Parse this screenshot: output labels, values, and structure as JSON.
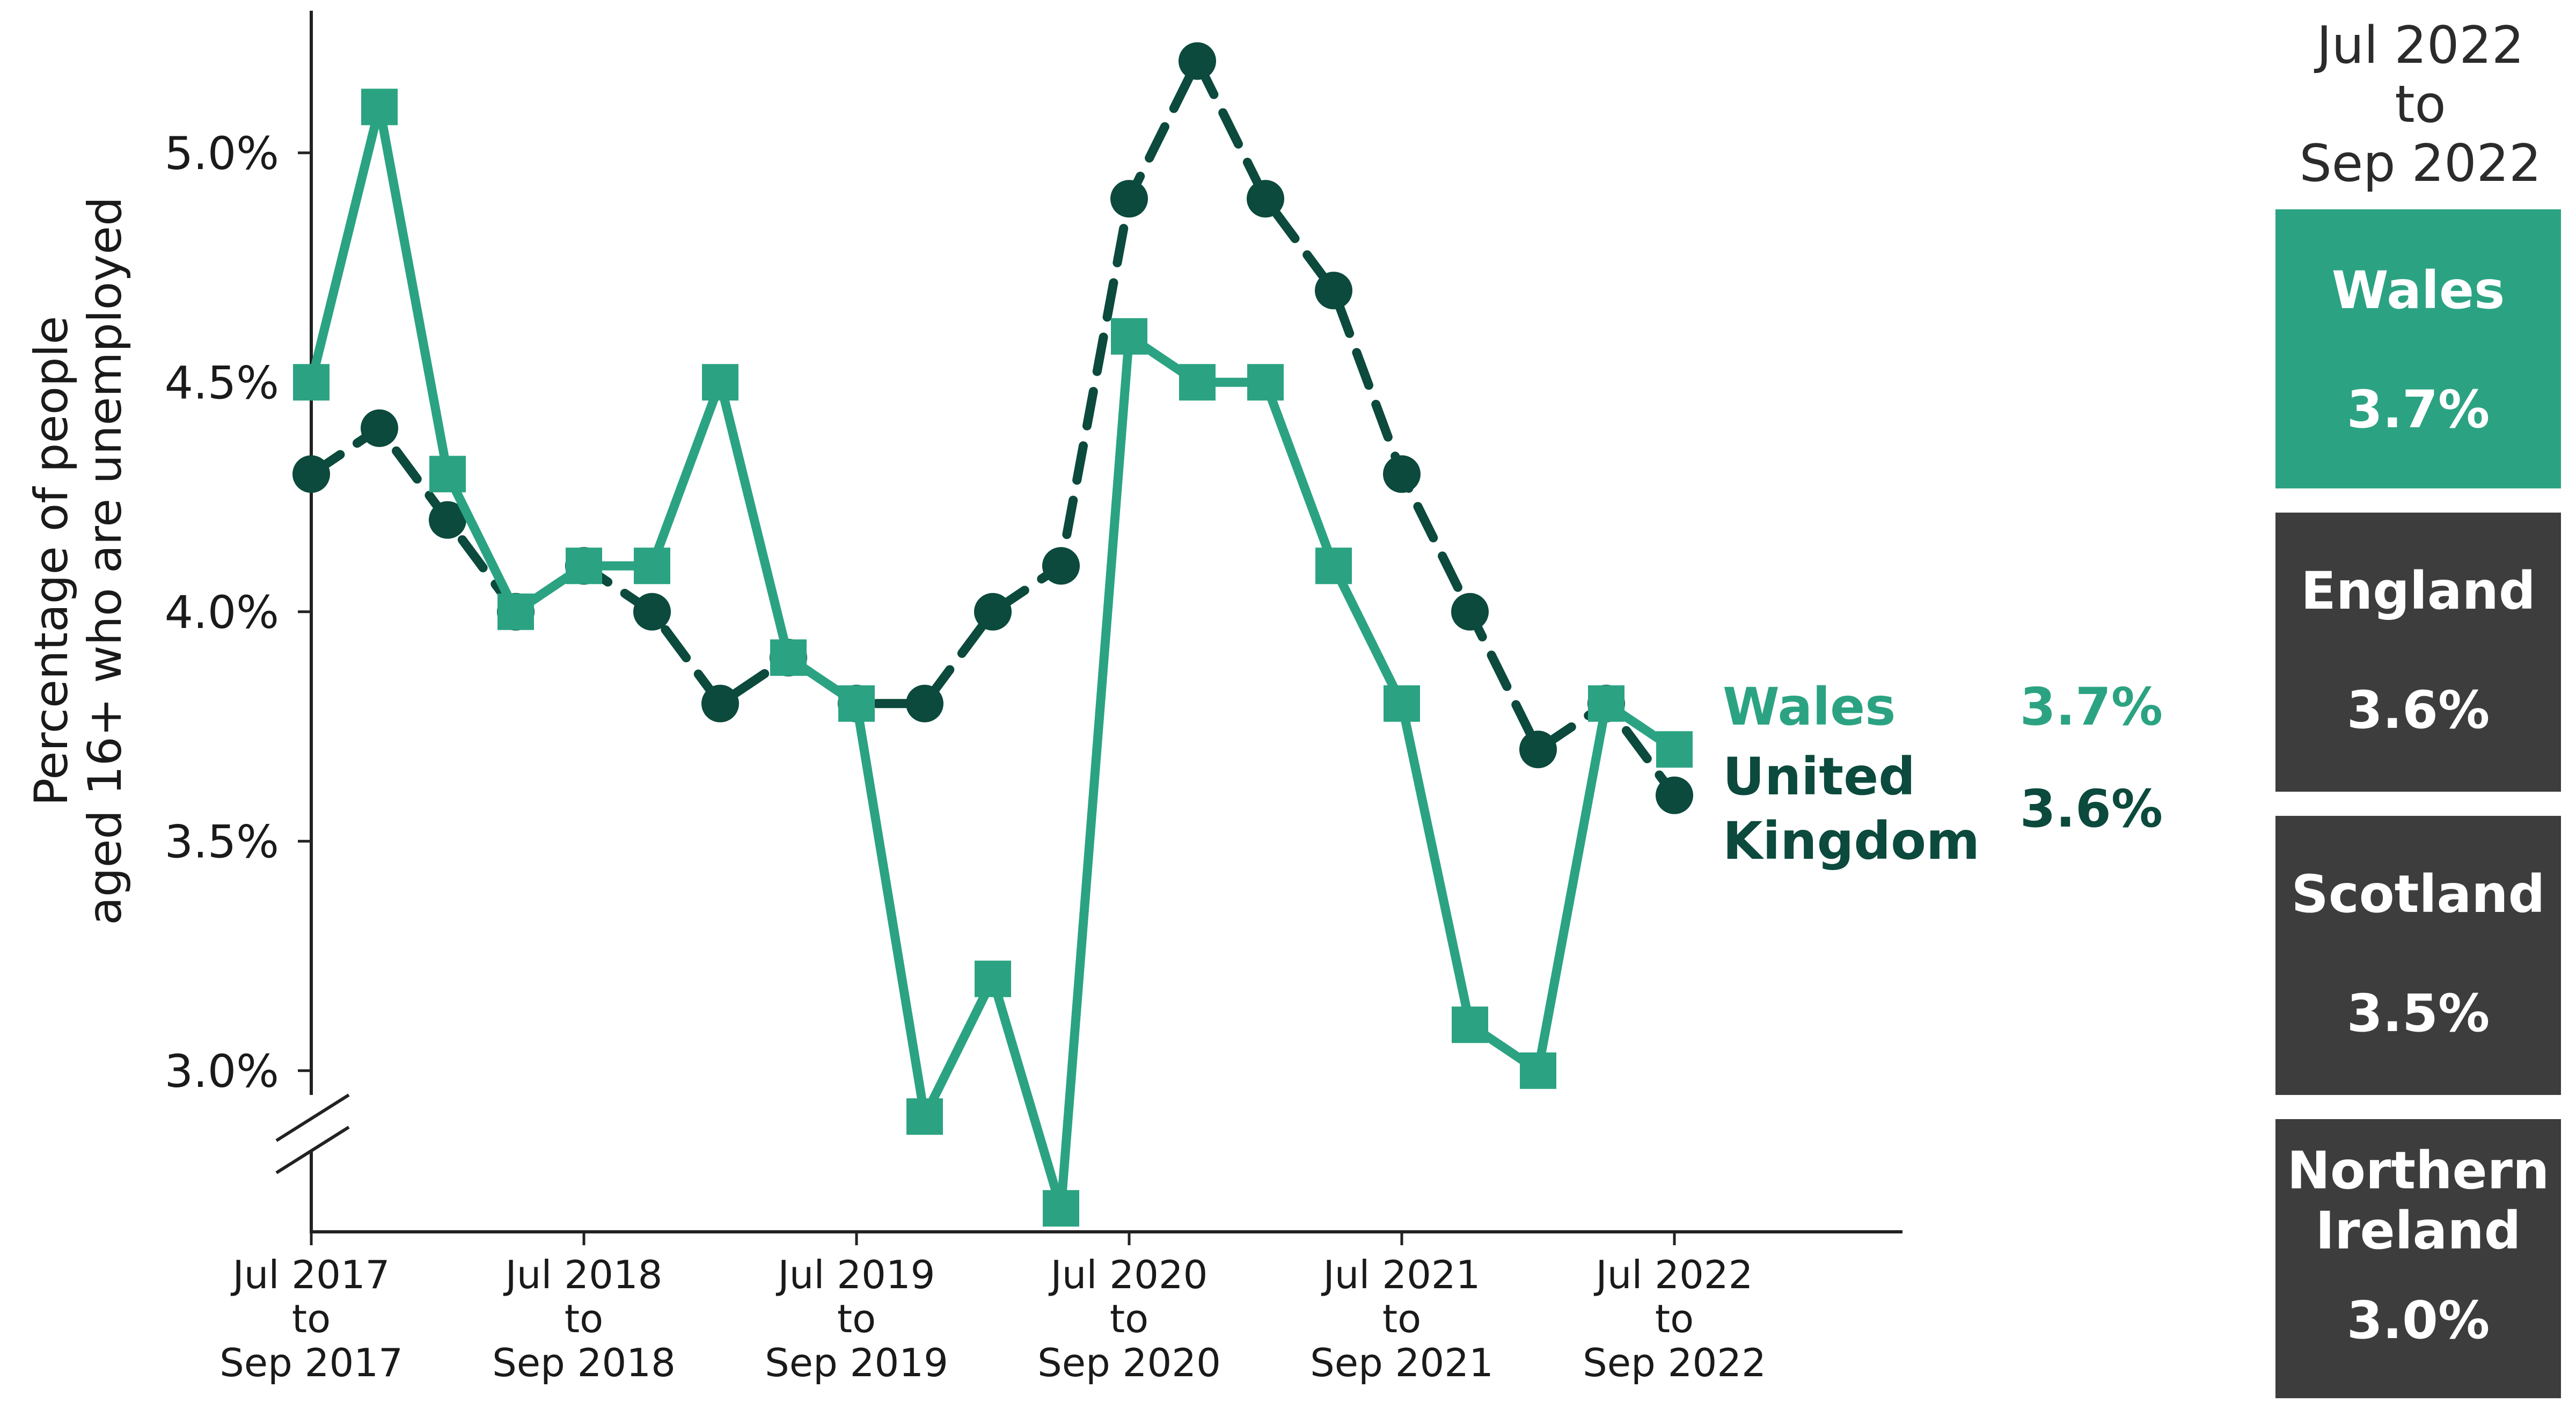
{
  "colors": {
    "wales": "#2ba382",
    "uk": "#0b4a3c",
    "axis": "#222222",
    "card_highlight": "#2ba382",
    "card_default": "#3d3d3d"
  },
  "chart_data": {
    "type": "line",
    "ylabel_line1": "Percentage of people",
    "ylabel_line2": "aged 16+ who are unemployed",
    "ylim": [
      2.65,
      5.25
    ],
    "y_ticks": [
      "3.0%",
      "3.5%",
      "4.0%",
      "4.5%",
      "5.0%"
    ],
    "y_tick_values": [
      3.0,
      3.5,
      4.0,
      4.5,
      5.0
    ],
    "y_axis_break": true,
    "x_tick_labels": [
      [
        "Jul 2017",
        "to",
        "Sep 2017"
      ],
      [
        "Jul 2018",
        "to",
        "Sep 2018"
      ],
      [
        "Jul 2019",
        "to",
        "Sep 2019"
      ],
      [
        "Jul 2020",
        "to",
        "Sep 2020"
      ],
      [
        "Jul 2021",
        "to",
        "Sep 2021"
      ],
      [
        "Jul 2022",
        "to",
        "Sep 2022"
      ]
    ],
    "x_tick_indices": [
      0,
      4,
      8,
      12,
      16,
      20
    ],
    "x_count": 21,
    "grid": false,
    "series": [
      {
        "name": "Wales",
        "end_label": "Wales",
        "end_value": "3.7%",
        "marker": "square",
        "line": "solid",
        "values": [
          4.5,
          5.1,
          4.3,
          4.0,
          4.1,
          4.1,
          4.5,
          3.9,
          3.8,
          2.9,
          3.2,
          2.7,
          4.6,
          4.5,
          4.5,
          4.1,
          3.8,
          3.1,
          3.0,
          3.8,
          3.7
        ]
      },
      {
        "name": "United Kingdom",
        "end_label_line1": "United",
        "end_label_line2": "Kingdom",
        "end_value": "3.6%",
        "marker": "circle",
        "line": "dashed",
        "values": [
          4.3,
          4.4,
          4.2,
          4.0,
          4.1,
          4.0,
          3.8,
          3.9,
          3.8,
          3.8,
          4.0,
          4.1,
          4.9,
          5.2,
          4.9,
          4.7,
          4.3,
          4.0,
          3.7,
          3.8,
          3.6
        ]
      }
    ]
  },
  "side_panel": {
    "title_line1": "Jul 2022",
    "title_line2": "to",
    "title_line3": "Sep 2022",
    "cards": [
      {
        "name_line1": "Wales",
        "name_line2": "",
        "value": "3.7%",
        "highlight": true
      },
      {
        "name_line1": "England",
        "name_line2": "",
        "value": "3.6%",
        "highlight": false
      },
      {
        "name_line1": "Scotland",
        "name_line2": "",
        "value": "3.5%",
        "highlight": false
      },
      {
        "name_line1": "Northern",
        "name_line2": "Ireland",
        "value": "3.0%",
        "highlight": false
      }
    ]
  }
}
